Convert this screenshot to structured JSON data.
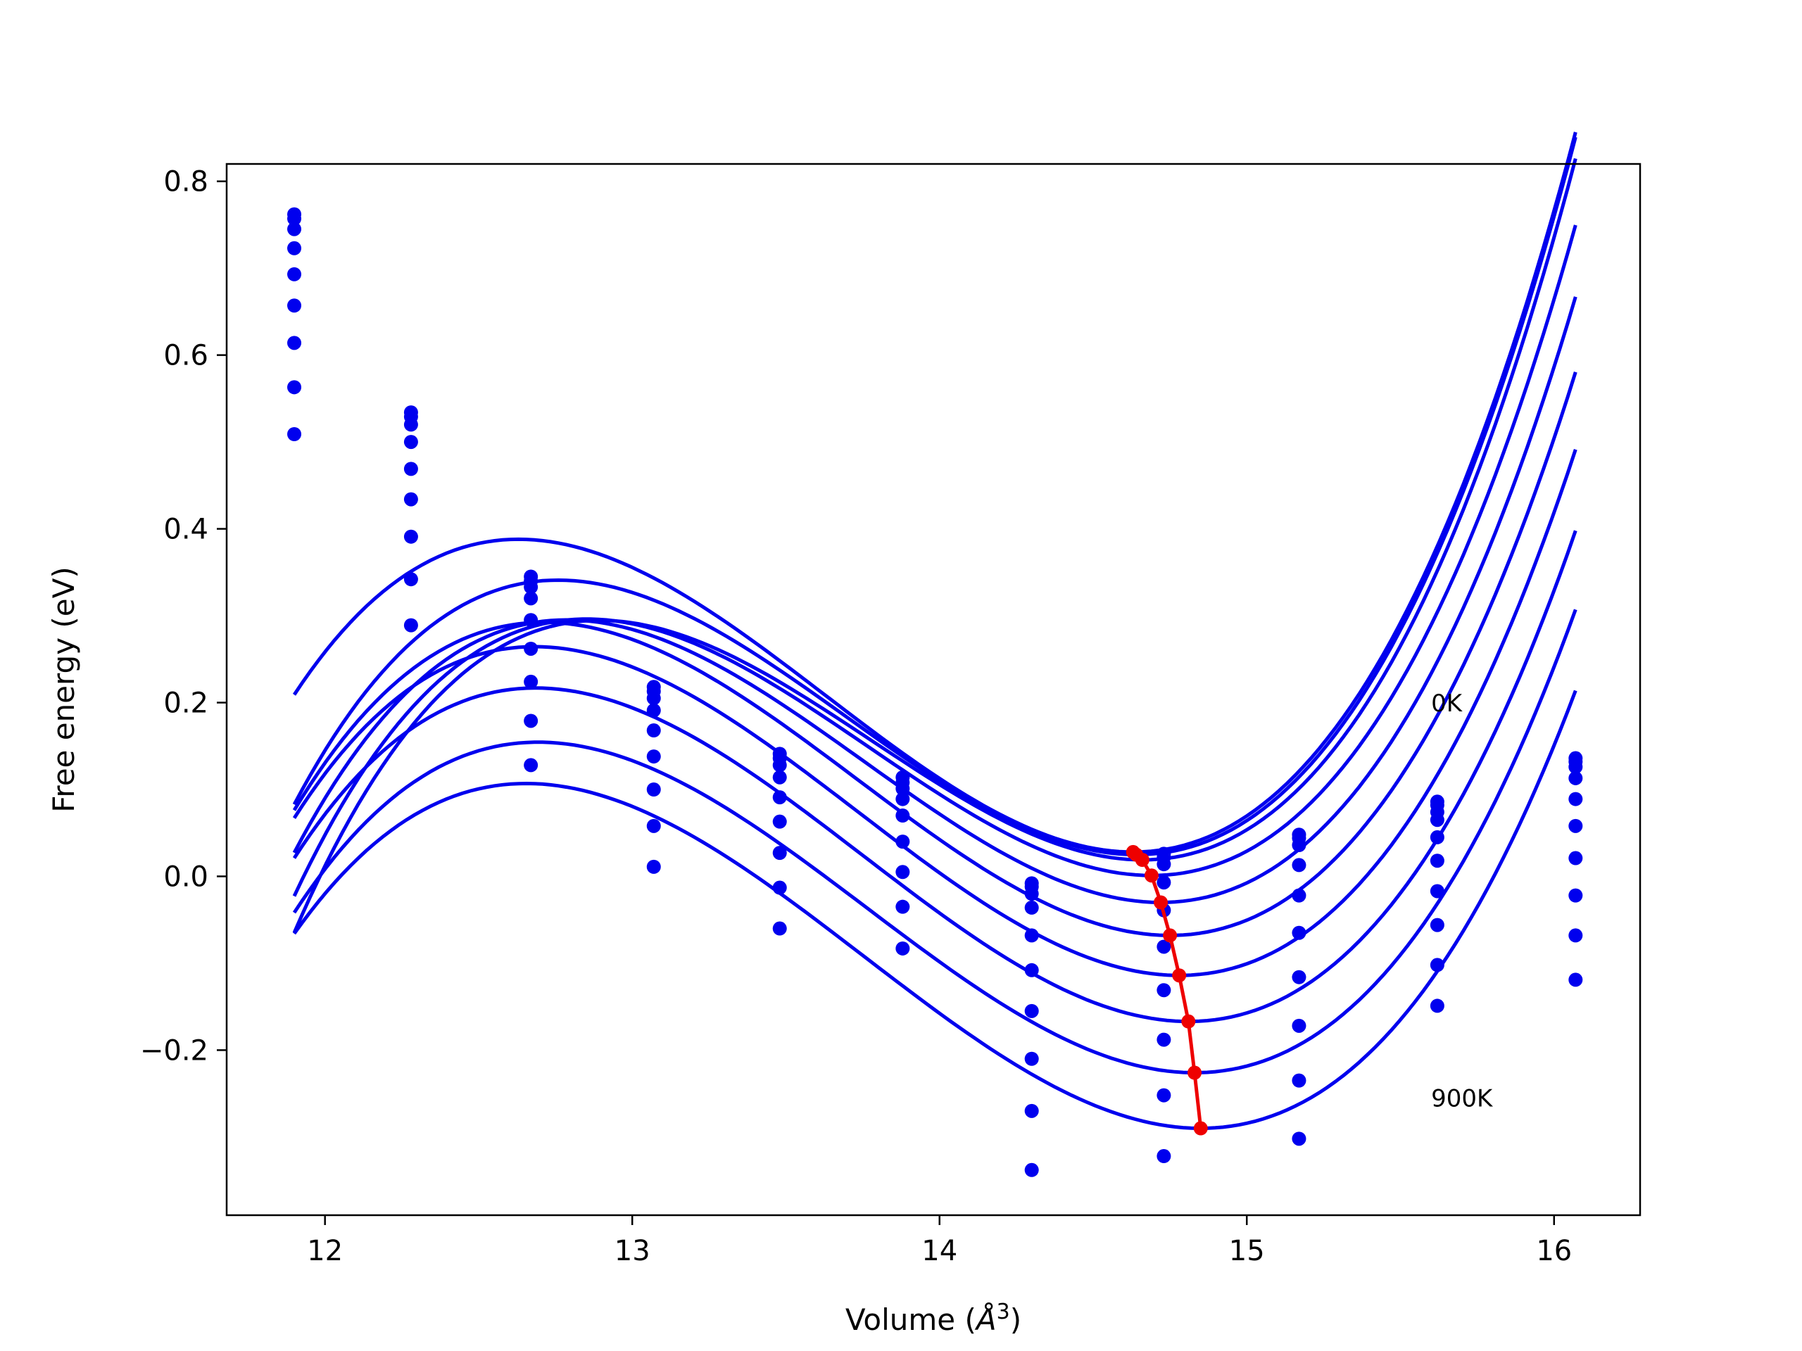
{
  "chart_data": {
    "type": "line",
    "title": "",
    "xlabel": "Volume (",
    "xlabel_sym": "Å",
    "xlabel_sup": "3",
    "xlabel_end": ")",
    "ylabel": "Free energy (eV)",
    "xlim": [
      11.68,
      16.28
    ],
    "ylim": [
      -0.39,
      0.82
    ],
    "xticks": [
      12,
      13,
      14,
      15,
      16
    ],
    "xtick_labels": [
      "12",
      "13",
      "14",
      "15",
      "16"
    ],
    "yticks": [
      0.8,
      0.6,
      0.4,
      0.2,
      0.0,
      -0.2
    ],
    "ytick_labels": [
      "0.8",
      "0.6",
      "0.4",
      "0.2",
      "0.0",
      "−0.2"
    ],
    "grid": false,
    "colors": {
      "curves": "#0000ee",
      "minimum_path": "#ee0000"
    },
    "annotations": [
      {
        "text": "0K",
        "x": 15.6,
        "y": 0.19
      },
      {
        "text": "900K",
        "x": 15.6,
        "y": -0.265
      }
    ],
    "x_range": [
      11.9,
      16.07
    ],
    "volumes": [
      11.9,
      12.28,
      12.67,
      13.07,
      13.48,
      13.88,
      14.3,
      14.73,
      15.17,
      15.62,
      16.07
    ],
    "series": [
      {
        "curve": {
          "vmin": 14.63,
          "emin": 0.028,
          "k": 0.27,
          "c": 0.09
        },
        "points": [
          0.762,
          0.534,
          0.345,
          0.218,
          0.141,
          0.114,
          -0.008,
          0.026,
          0.048,
          0.086,
          0.136
        ]
      },
      {
        "curve": {
          "vmin": 14.64,
          "emin": 0.025,
          "k": 0.268,
          "c": 0.095
        },
        "points": [
          0.757,
          0.529,
          0.34,
          0.213,
          0.136,
          0.108,
          -0.012,
          0.022,
          0.044,
          0.082,
          0.132
        ]
      },
      {
        "curve": {
          "vmin": 14.66,
          "emin": 0.019,
          "k": 0.265,
          "c": 0.1
        },
        "points": [
          0.745,
          0.52,
          0.333,
          0.205,
          0.128,
          0.101,
          -0.02,
          0.014,
          0.036,
          0.074,
          0.126
        ]
      },
      {
        "curve": {
          "vmin": 14.69,
          "emin": 0.001,
          "k": 0.262,
          "c": 0.095
        },
        "points": [
          0.723,
          0.5,
          0.32,
          0.191,
          0.114,
          0.089,
          -0.036,
          -0.007,
          0.013,
          0.065,
          0.113
        ]
      },
      {
        "curve": {
          "vmin": 14.72,
          "emin": -0.03,
          "k": 0.261,
          "c": 0.09
        },
        "points": [
          0.693,
          0.469,
          0.295,
          0.168,
          0.091,
          0.07,
          -0.068,
          -0.039,
          -0.022,
          0.045,
          0.089
        ]
      },
      {
        "curve": {
          "vmin": 14.75,
          "emin": -0.068,
          "k": 0.26,
          "c": 0.085
        },
        "points": [
          0.657,
          0.434,
          0.262,
          0.138,
          0.063,
          0.04,
          -0.108,
          -0.081,
          -0.065,
          0.018,
          0.058
        ]
      },
      {
        "curve": {
          "vmin": 14.78,
          "emin": -0.114,
          "k": 0.258,
          "c": 0.082
        },
        "points": [
          0.614,
          0.391,
          0.224,
          0.1,
          0.027,
          0.005,
          -0.155,
          -0.131,
          -0.116,
          -0.017,
          0.021
        ]
      },
      {
        "curve": {
          "vmin": 14.81,
          "emin": -0.167,
          "k": 0.255,
          "c": 0.08
        },
        "points": [
          0.563,
          0.342,
          0.179,
          0.058,
          -0.013,
          -0.035,
          -0.21,
          -0.188,
          -0.172,
          -0.056,
          -0.022
        ]
      },
      {
        "curve": {
          "vmin": 14.83,
          "emin": -0.226,
          "k": 0.25,
          "c": 0.078
        },
        "points": [
          0.509,
          0.289,
          0.128,
          0.011,
          -0.06,
          -0.083,
          -0.27,
          -0.252,
          -0.235,
          -0.102,
          -0.068
        ]
      },
      {
        "curve": {
          "vmin": 14.85,
          "emin": -0.29,
          "k": 0.247,
          "c": 0.075
        },
        "points": [
          null,
          null,
          null,
          null,
          null,
          null,
          -0.338,
          -0.322,
          -0.302,
          -0.149,
          -0.119
        ]
      }
    ],
    "minimum_path": {
      "x": [
        14.63,
        14.64,
        14.66,
        14.69,
        14.72,
        14.75,
        14.78,
        14.81,
        14.83,
        14.85
      ],
      "y": [
        0.028,
        0.025,
        0.019,
        0.001,
        -0.03,
        -0.068,
        -0.114,
        -0.167,
        -0.226,
        -0.29
      ]
    }
  }
}
